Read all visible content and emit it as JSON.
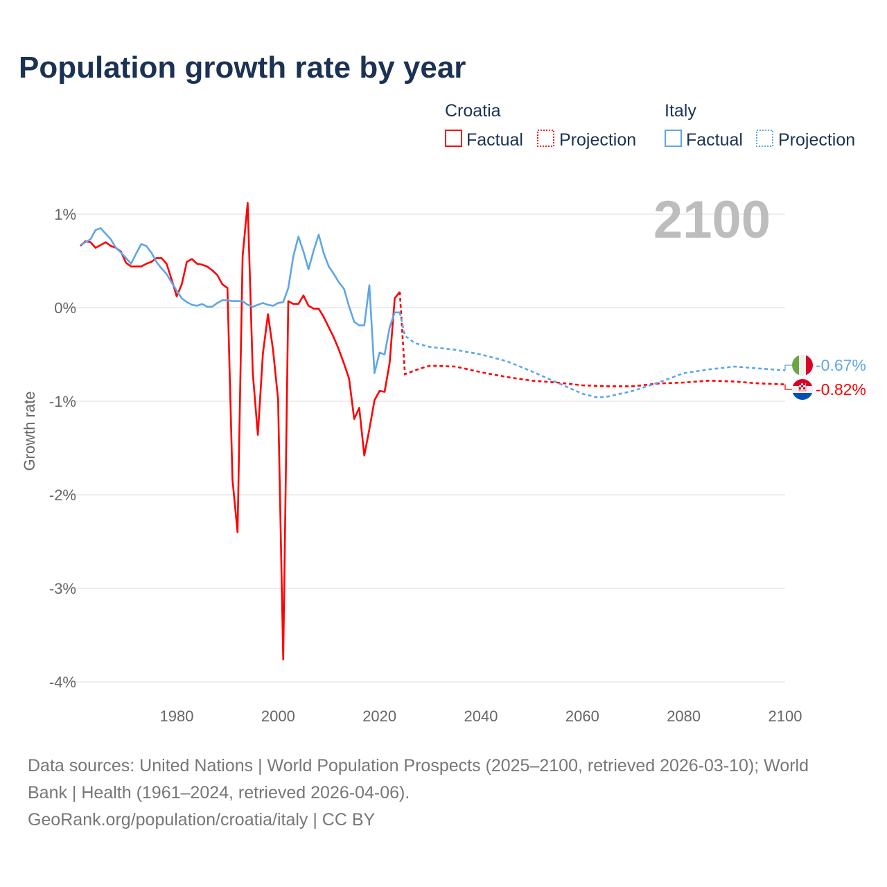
{
  "title": "Population growth rate by year",
  "legend": {
    "groups": [
      {
        "name": "Croatia",
        "factual": "Factual",
        "projection": "Projection",
        "color": "#ff0000"
      },
      {
        "name": "Italy",
        "factual": "Factual",
        "projection": "Projection",
        "color": "#5ea5ea"
      }
    ]
  },
  "current_year_label": "2100",
  "footer": {
    "line1": "Data sources: United Nations | World Population Prospects (2025–2100, retrieved 2026-03-10); World",
    "line2": "Bank | Health (1961–2024, retrieved 2026-04-06).",
    "line3": "GeoRank.org/population/croatia/italy | CC BY"
  },
  "chart_data": {
    "type": "line",
    "title": "Population growth rate by year",
    "xlabel": "",
    "ylabel": "Growth rate",
    "xlim": [
      1961,
      2100
    ],
    "ylim": [
      -4.3,
      1.2
    ],
    "x_ticks": [
      1980,
      2000,
      2020,
      2040,
      2060,
      2080,
      2100
    ],
    "x_tick_labels": [
      "1980",
      "2000",
      "2020",
      "2040",
      "2060",
      "2080",
      "2100"
    ],
    "y_ticks": [
      1,
      0,
      -1,
      -2,
      -3,
      -4
    ],
    "y_tick_labels": [
      "1%",
      "0%",
      "-1%",
      "-2%",
      "-3%",
      "-4%"
    ],
    "grid": true,
    "legend_position": "top-right",
    "series": [
      {
        "name": "Croatia",
        "color": "#ff0000",
        "end_label": "-0.82%",
        "factual": {
          "x": [
            1961,
            1962,
            1963,
            1964,
            1965,
            1966,
            1967,
            1968,
            1969,
            1970,
            1971,
            1972,
            1973,
            1974,
            1975,
            1976,
            1977,
            1978,
            1979,
            1980,
            1981,
            1982,
            1983,
            1984,
            1985,
            1986,
            1987,
            1988,
            1989,
            1990,
            1991,
            1992,
            1993,
            1994,
            1995,
            1996,
            1997,
            1998,
            1999,
            2000,
            2001,
            2002,
            2003,
            2004,
            2005,
            2006,
            2007,
            2008,
            2009,
            2010,
            2011,
            2012,
            2013,
            2014,
            2015,
            2016,
            2017,
            2018,
            2019,
            2020,
            2021,
            2022,
            2023,
            2024
          ],
          "y": [
            0.66,
            0.71,
            0.7,
            0.64,
            0.67,
            0.7,
            0.66,
            0.64,
            0.6,
            0.48,
            0.44,
            0.44,
            0.44,
            0.47,
            0.49,
            0.53,
            0.53,
            0.47,
            0.3,
            0.12,
            0.25,
            0.49,
            0.52,
            0.47,
            0.46,
            0.44,
            0.4,
            0.35,
            0.25,
            0.21,
            -1.84,
            -2.4,
            0.55,
            1.12,
            -0.7,
            -1.36,
            -0.49,
            -0.07,
            -0.45,
            -0.98,
            -3.76,
            0.07,
            0.04,
            0.04,
            0.13,
            0.02,
            -0.01,
            -0.01,
            -0.1,
            -0.21,
            -0.32,
            -0.45,
            -0.6,
            -0.76,
            -1.19,
            -1.07,
            -1.58,
            -1.3,
            -0.99,
            -0.89,
            -0.9,
            -0.59,
            0.1,
            0.17
          ]
        },
        "projection": {
          "x": [
            2024,
            2025,
            2028,
            2030,
            2035,
            2040,
            2045,
            2050,
            2055,
            2060,
            2065,
            2070,
            2075,
            2080,
            2085,
            2090,
            2095,
            2100
          ],
          "y": [
            0.17,
            -0.71,
            -0.65,
            -0.62,
            -0.63,
            -0.69,
            -0.74,
            -0.78,
            -0.8,
            -0.83,
            -0.84,
            -0.84,
            -0.81,
            -0.8,
            -0.78,
            -0.79,
            -0.81,
            -0.82
          ]
        }
      },
      {
        "name": "Italy",
        "color": "#5ea5ea",
        "end_label": "-0.67%",
        "factual": {
          "x": [
            1961,
            1962,
            1963,
            1964,
            1965,
            1966,
            1967,
            1968,
            1969,
            1970,
            1971,
            1972,
            1973,
            1974,
            1975,
            1976,
            1977,
            1978,
            1979,
            1980,
            1981,
            1982,
            1983,
            1984,
            1985,
            1986,
            1987,
            1988,
            1989,
            1990,
            1991,
            1992,
            1993,
            1994,
            1995,
            1996,
            1997,
            1998,
            1999,
            2000,
            2001,
            2002,
            2003,
            2004,
            2005,
            2006,
            2007,
            2008,
            2009,
            2010,
            2011,
            2012,
            2013,
            2014,
            2015,
            2016,
            2017,
            2018,
            2019,
            2020,
            2021,
            2022,
            2023,
            2024
          ],
          "y": [
            0.67,
            0.7,
            0.73,
            0.83,
            0.85,
            0.79,
            0.73,
            0.64,
            0.59,
            0.53,
            0.47,
            0.58,
            0.68,
            0.66,
            0.59,
            0.49,
            0.42,
            0.36,
            0.27,
            0.18,
            0.1,
            0.06,
            0.03,
            0.02,
            0.04,
            0.01,
            0.01,
            0.05,
            0.08,
            0.08,
            0.07,
            0.07,
            0.07,
            0.03,
            0.01,
            0.03,
            0.05,
            0.03,
            0.02,
            0.05,
            0.06,
            0.21,
            0.55,
            0.76,
            0.6,
            0.41,
            0.61,
            0.78,
            0.58,
            0.44,
            0.36,
            0.27,
            0.2,
            0.01,
            -0.15,
            -0.19,
            -0.19,
            0.24,
            -0.7,
            -0.48,
            -0.5,
            -0.21,
            -0.05,
            -0.05
          ]
        },
        "projection": {
          "x": [
            2024,
            2025,
            2027,
            2030,
            2035,
            2040,
            2045,
            2050,
            2055,
            2060,
            2063,
            2065,
            2070,
            2075,
            2080,
            2085,
            2090,
            2095,
            2100
          ],
          "y": [
            -0.05,
            -0.3,
            -0.38,
            -0.42,
            -0.45,
            -0.5,
            -0.57,
            -0.68,
            -0.8,
            -0.92,
            -0.96,
            -0.95,
            -0.89,
            -0.8,
            -0.7,
            -0.66,
            -0.63,
            -0.65,
            -0.67
          ]
        }
      }
    ]
  }
}
